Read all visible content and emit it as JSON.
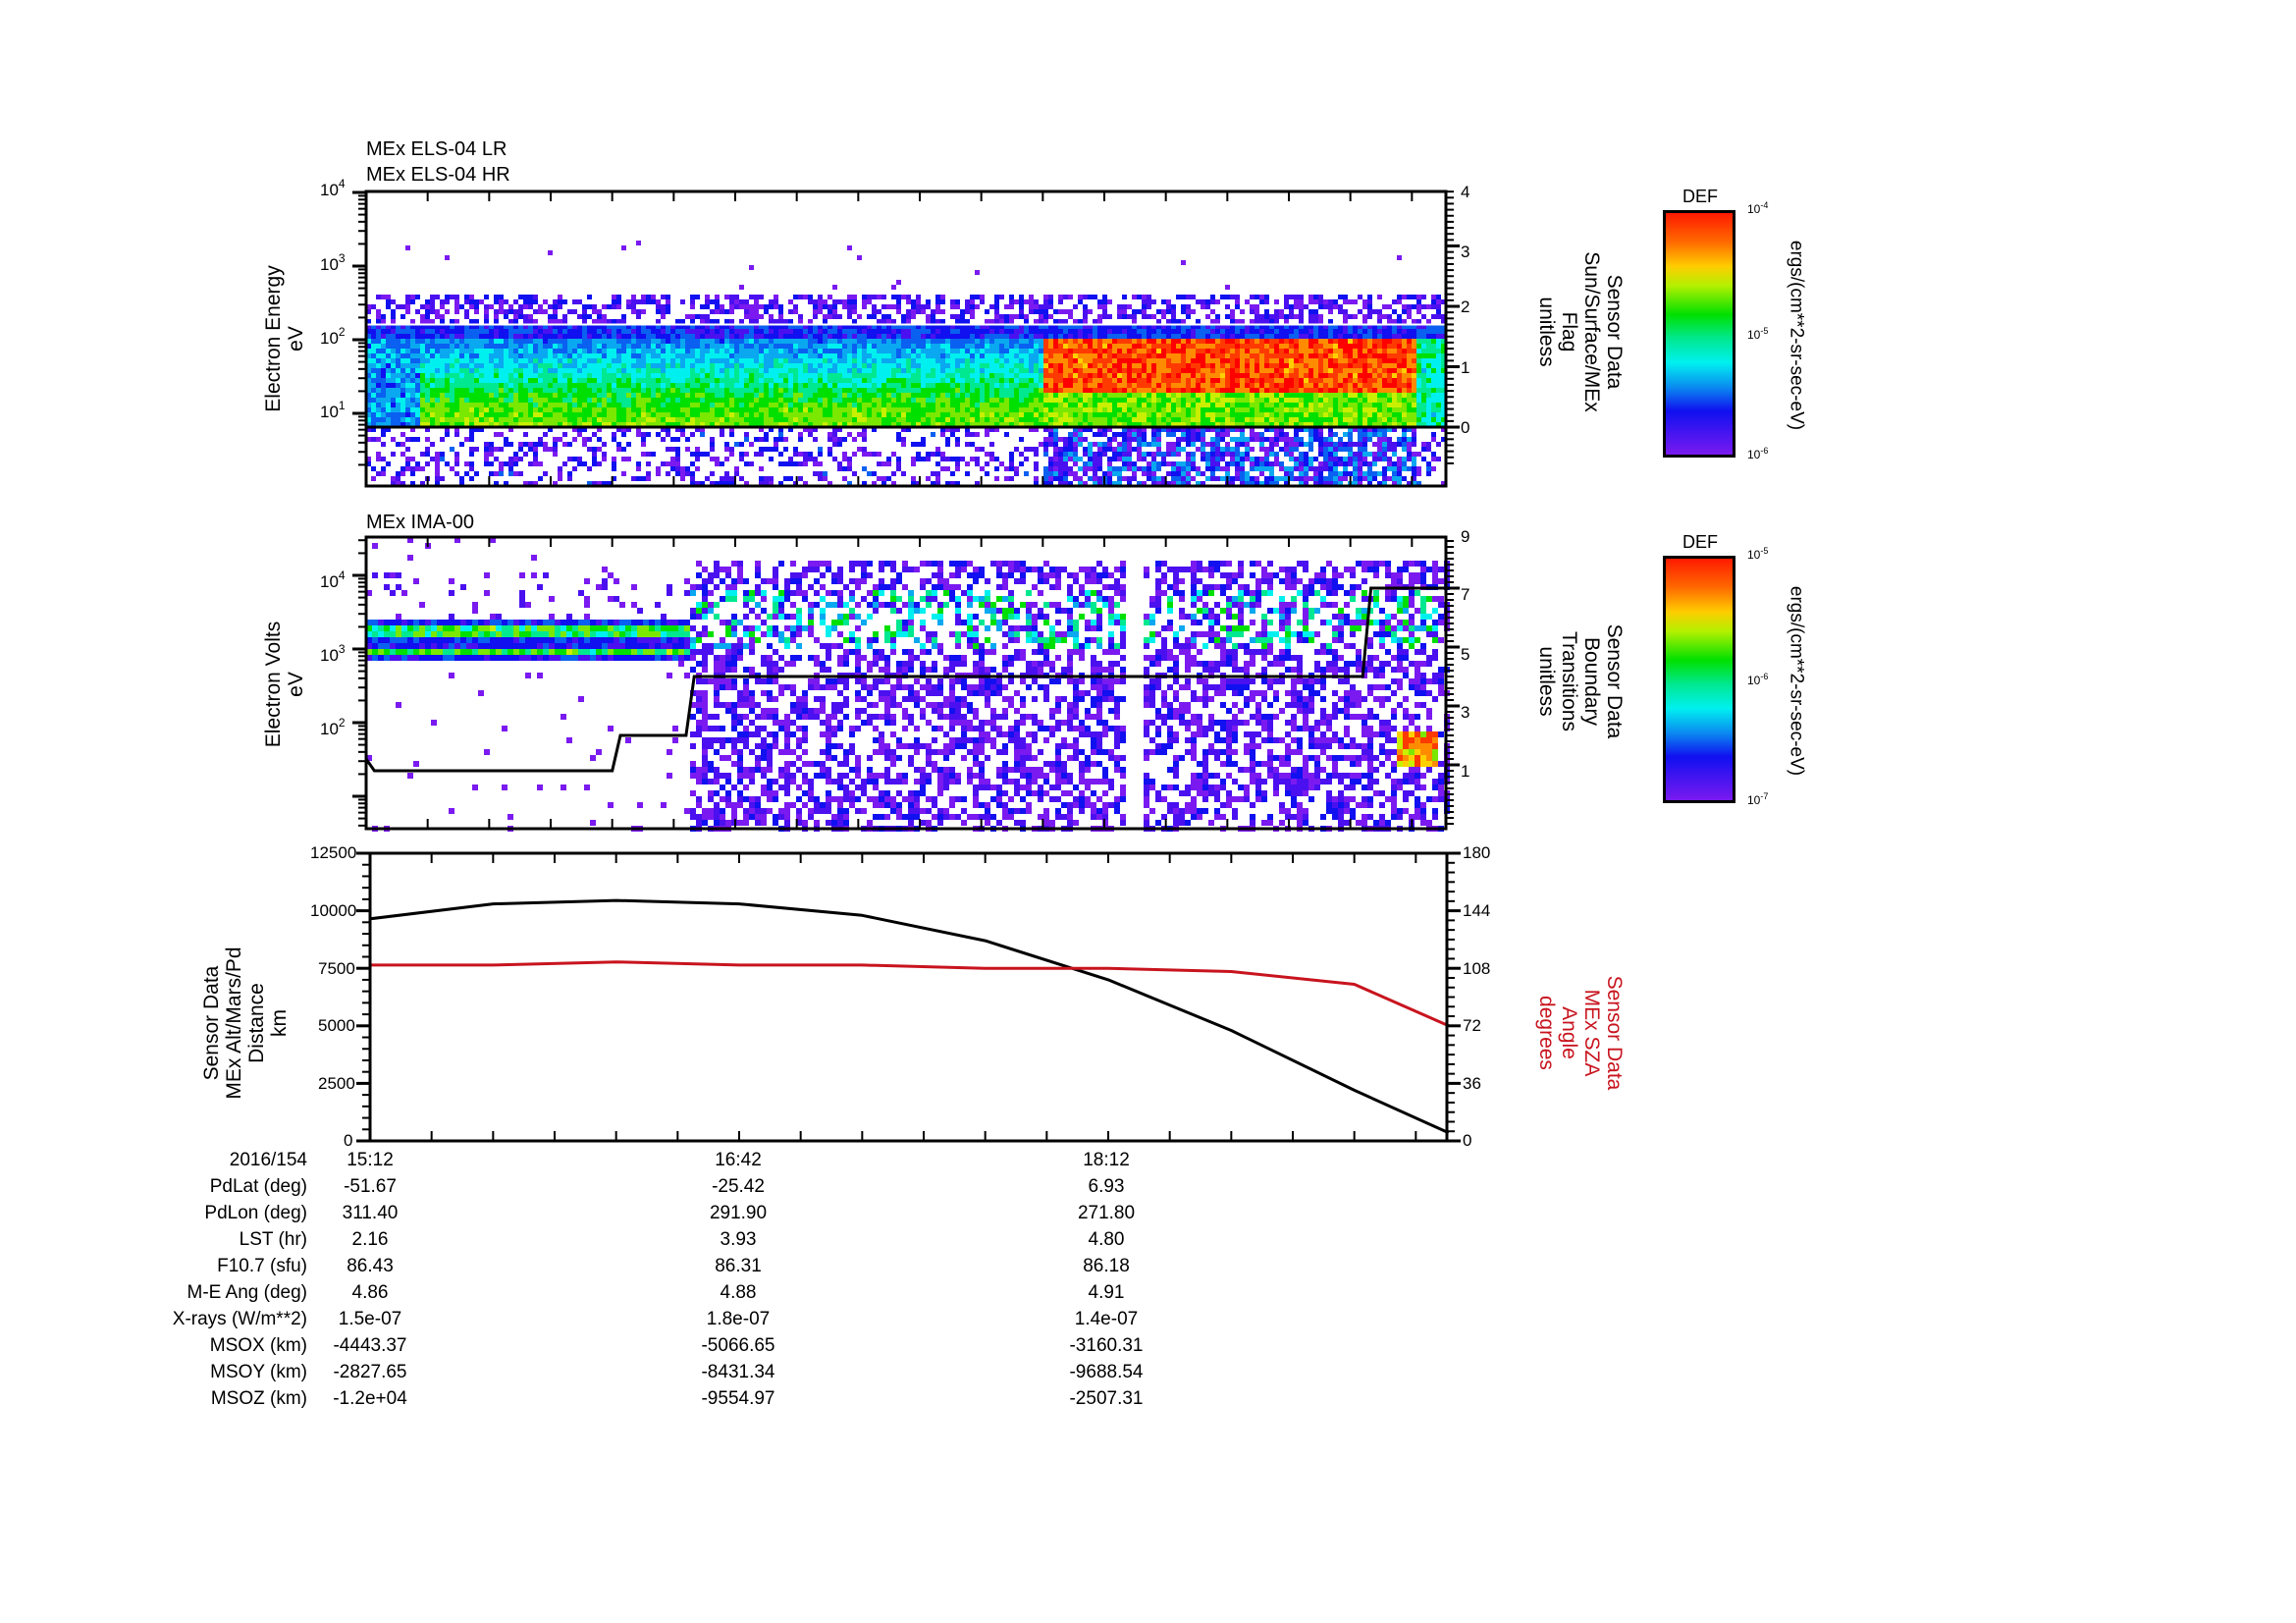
{
  "chart_data": [
    {
      "type": "heatmap",
      "panel": 1,
      "titles": [
        "MEx ELS-04 LR",
        "MEx ELS-04 HR"
      ],
      "ylabel": [
        "Electron Energy",
        "eV"
      ],
      "yscale": "log",
      "ylim": [
        1,
        10000
      ],
      "yticks": [
        "10^1",
        "10^2",
        "10^3",
        "10^4"
      ],
      "y2label": [
        "Sensor Data",
        "Sun/Surface/MEx",
        "Flag",
        "unitless"
      ],
      "y2lim": [
        -0.6,
        4
      ],
      "y2ticks": [
        "0",
        "1",
        "2",
        "3",
        "4"
      ],
      "colorbar": {
        "title": "DEF",
        "unit": "ergs/(cm**2-sr-sec-eV)",
        "ticks": [
          "10^-4",
          "10^-5",
          "10^-6"
        ],
        "range": [
          1e-06,
          0.0001
        ],
        "scale": "log"
      },
      "overlay_lines": [
        {
          "name": "flag",
          "color": "#000000",
          "value": 0
        },
        {
          "name": "upper-boundary",
          "color": "#ffffff",
          "value": 1.7
        }
      ],
      "features": "Broad green band ~7–150 eV across the whole interval; intense red flux (~20–150 eV) from ~17:58 to ~19:28; low-flux window after ~19:28"
    },
    {
      "type": "heatmap",
      "panel": 2,
      "titles": [
        "MEx IMA-00"
      ],
      "ylabel": [
        "Electron Volts",
        "eV"
      ],
      "yscale": "log",
      "ylim": [
        10,
        40000
      ],
      "yticks": [
        "10^2",
        "10^3",
        "10^4"
      ],
      "y2label": [
        "Sensor Data",
        "Boundary",
        "Transitions",
        "unitless"
      ],
      "y2lim": [
        -1,
        9
      ],
      "y2ticks": [
        "1",
        "3",
        "5",
        "7",
        "9"
      ],
      "colorbar": {
        "title": "DEF",
        "unit": "ergs/(cm**2-sr-sec-eV)",
        "ticks": [
          "10^-5",
          "10^-6",
          "10^-7"
        ],
        "range": [
          1e-07,
          1e-05
        ],
        "scale": "log"
      },
      "boundary_line": {
        "color": "#000000",
        "x_minutes_from_1512": [
          0,
          2,
          60,
          62,
          78,
          80,
          243,
          245,
          264
        ],
        "values": [
          1.2,
          0.8,
          0.8,
          2.0,
          2.0,
          4.0,
          4.0,
          7.0,
          7.0
        ]
      },
      "features": "Two narrow bands near ~1 keV and ~2 keV from 15:12 to ~17:05; broadband scattered flux after ~17:05 with a data gap near ~18:15; low-energy burst near end (~19:30)"
    },
    {
      "type": "line",
      "panel": 3,
      "ylabel": [
        "Sensor Data",
        "MEx Alt/Mars/Pd",
        "Distance",
        "km"
      ],
      "ylim": [
        0,
        12500
      ],
      "yticks": [
        "0",
        "2500",
        "5000",
        "7500",
        "10000",
        "12500"
      ],
      "y2label": [
        "Sensor Data",
        "MEx SZA",
        "Angle",
        "degrees"
      ],
      "y2lim": [
        0,
        180
      ],
      "y2ticks": [
        "0",
        "36",
        "72",
        "108",
        "144",
        "180"
      ],
      "x": [
        "15:12",
        "15:42",
        "16:12",
        "16:42",
        "17:12",
        "17:42",
        "18:12",
        "18:42",
        "19:12",
        "19:35"
      ],
      "series": [
        {
          "name": "MEx Alt/Mars/Pd Distance (km)",
          "axis": "left",
          "color": "#000000",
          "values": [
            9650,
            10300,
            10450,
            10300,
            9800,
            8700,
            7000,
            4800,
            2200,
            350
          ]
        },
        {
          "name": "MEx SZA Angle (degrees)",
          "axis": "right",
          "color": "#c8141e",
          "values": [
            110,
            110,
            112,
            110,
            110,
            108,
            108,
            106,
            98,
            72
          ]
        }
      ]
    }
  ],
  "panels": {
    "p1": {
      "title1": "MEx ELS-04 LR",
      "title2": "MEx ELS-04 HR",
      "ylabel": [
        "Electron Energy",
        "eV"
      ],
      "yticks": [
        {
          "base": "10",
          "exp": "4"
        },
        {
          "base": "10",
          "exp": "3"
        },
        {
          "base": "10",
          "exp": "2"
        },
        {
          "base": "10",
          "exp": "1"
        }
      ],
      "y2label": [
        "Sensor Data",
        "Sun/Surface/MEx",
        "Flag",
        "unitless"
      ],
      "y2ticks": [
        "4",
        "3",
        "2",
        "1",
        "0"
      ]
    },
    "p2": {
      "title": "MEx IMA-00",
      "ylabel": [
        "Electron Volts",
        "eV"
      ],
      "yticks": [
        {
          "base": "10",
          "exp": "4"
        },
        {
          "base": "10",
          "exp": "3"
        },
        {
          "base": "10",
          "exp": "2"
        }
      ],
      "y2label": [
        "Sensor Data",
        "Boundary",
        "Transitions",
        "unitless"
      ],
      "y2ticks": [
        "9",
        "7",
        "5",
        "3",
        "1"
      ]
    },
    "p3": {
      "ylabel": [
        "Sensor Data",
        "MEx Alt/Mars/Pd",
        "Distance",
        "km"
      ],
      "yticks": [
        "12500",
        "10000",
        "7500",
        "5000",
        "2500",
        "0"
      ],
      "y2label": [
        "Sensor Data",
        "MEx SZA",
        "Angle",
        "degrees"
      ],
      "y2ticks": [
        "180",
        "144",
        "108",
        "72",
        "36",
        "0"
      ]
    }
  },
  "colorbars": {
    "c1": {
      "title": "DEF",
      "ticks": [
        {
          "base": "10",
          "exp": "-4"
        },
        {
          "base": "10",
          "exp": "-5"
        },
        {
          "base": "10",
          "exp": "-6"
        }
      ],
      "unit": "ergs/(cm**2-sr-sec-eV)"
    },
    "c2": {
      "title": "DEF",
      "ticks": [
        {
          "base": "10",
          "exp": "-5"
        },
        {
          "base": "10",
          "exp": "-6"
        },
        {
          "base": "10",
          "exp": "-7"
        }
      ],
      "unit": "ergs/(cm**2-sr-sec-eV)"
    }
  },
  "colors": {
    "series_alt": "#000000",
    "series_sza": "#c8141e"
  },
  "ephemeris": {
    "labels": [
      "2016/154",
      "PdLat (deg)",
      "PdLon (deg)",
      "LST (hr)",
      "F10.7 (sfu)",
      "M-E Ang (deg)",
      "X-rays (W/m**2)",
      "MSOX (km)",
      "MSOY (km)",
      "MSOZ (km)"
    ],
    "columns": [
      {
        "time": "15:12",
        "values": [
          "-51.67",
          "311.40",
          "2.16",
          "86.43",
          "4.86",
          "1.5e-07",
          "-4443.37",
          "-2827.65",
          "-1.2e+04"
        ]
      },
      {
        "time": "16:42",
        "values": [
          "-25.42",
          "291.90",
          "3.93",
          "86.31",
          "4.88",
          "1.8e-07",
          "-5066.65",
          "-8431.34",
          "-9554.97"
        ]
      },
      {
        "time": "18:12",
        "values": [
          "6.93",
          "271.80",
          "4.80",
          "86.18",
          "4.91",
          "1.4e-07",
          "-3160.31",
          "-9688.54",
          "-2507.31"
        ]
      }
    ]
  }
}
